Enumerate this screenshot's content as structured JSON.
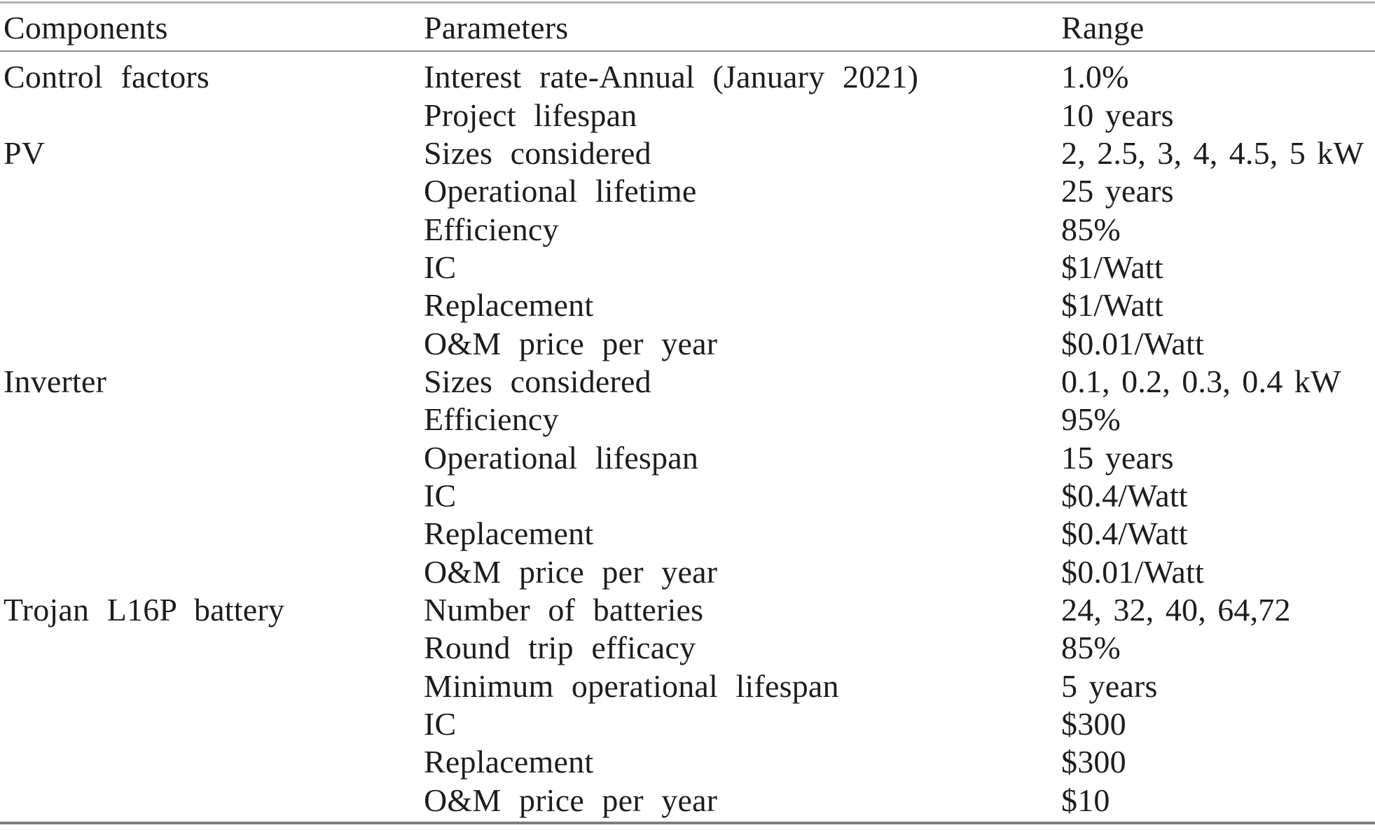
{
  "table": {
    "columns": [
      "Components",
      "Parameters",
      "Range"
    ],
    "rows": [
      {
        "component": "Control factors",
        "parameter": "Interest rate-Annual (January 2021)",
        "range": "1.0%"
      },
      {
        "component": "",
        "parameter": "Project lifespan",
        "range": "10 years"
      },
      {
        "component": "PV",
        "parameter": "Sizes considered",
        "range": "2, 2.5, 3, 4, 4.5, 5 kW"
      },
      {
        "component": "",
        "parameter": "Operational lifetime",
        "range": "25 years"
      },
      {
        "component": "",
        "parameter": "Efficiency",
        "range": "85%"
      },
      {
        "component": "",
        "parameter": "IC",
        "range": "$1/Watt"
      },
      {
        "component": "",
        "parameter": "Replacement",
        "range": "$1/Watt"
      },
      {
        "component": "",
        "parameter": "O&M price per year",
        "range": "$0.01/Watt"
      },
      {
        "component": "Inverter",
        "parameter": "Sizes considered",
        "range": "0.1, 0.2, 0.3, 0.4 kW"
      },
      {
        "component": "",
        "parameter": "Efficiency",
        "range": "95%"
      },
      {
        "component": "",
        "parameter": "Operational lifespan",
        "range": "15 years"
      },
      {
        "component": "",
        "parameter": "IC",
        "range": "$0.4/Watt"
      },
      {
        "component": "",
        "parameter": "Replacement",
        "range": "$0.4/Watt"
      },
      {
        "component": "",
        "parameter": "O&M price per year",
        "range": "$0.01/Watt"
      },
      {
        "component": "Trojan L16P battery",
        "parameter": "Number of batteries",
        "range": "24, 32, 40, 64,72"
      },
      {
        "component": "",
        "parameter": "Round trip efficacy",
        "range": "85%"
      },
      {
        "component": "",
        "parameter": "Minimum operational lifespan",
        "range": "5 years"
      },
      {
        "component": "",
        "parameter": "IC",
        "range": "$300"
      },
      {
        "component": "",
        "parameter": "Replacement",
        "range": "$300"
      },
      {
        "component": "",
        "parameter": "O&M price per year",
        "range": "$10"
      }
    ]
  }
}
